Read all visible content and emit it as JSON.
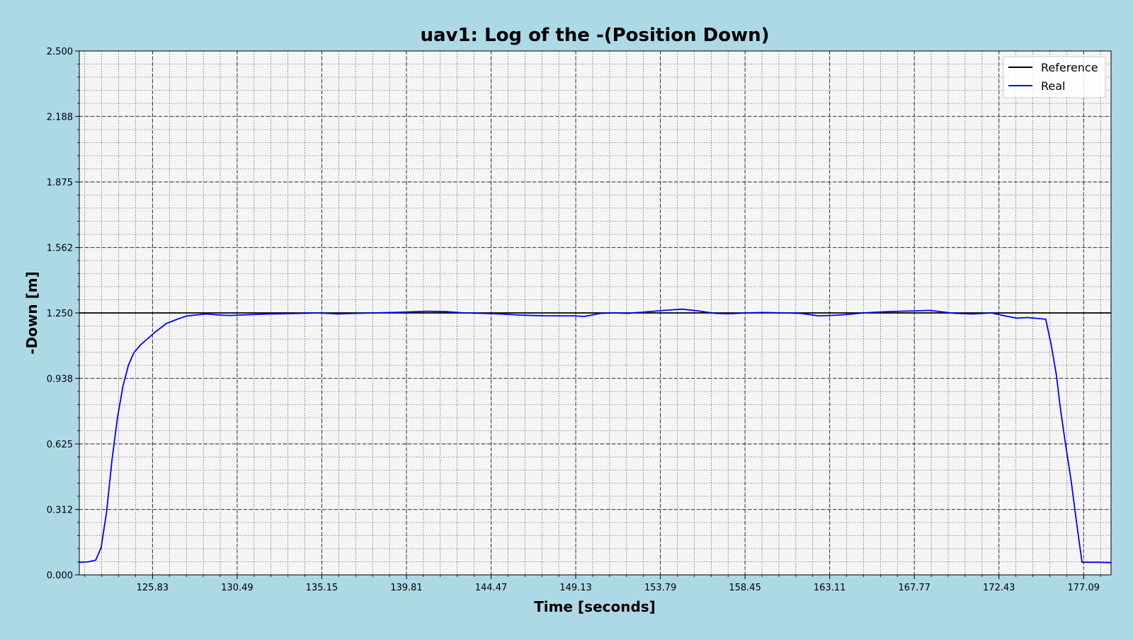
{
  "chart_data": {
    "type": "line",
    "title": "uav1: Log of the -(Position Down)",
    "xlabel": "Time [seconds]",
    "ylabel": "-Down [m]",
    "xlim": [
      121.8,
      178.6
    ],
    "ylim": [
      0.0,
      2.5
    ],
    "xticks": [
      "125.83",
      "130.49",
      "135.15",
      "139.81",
      "144.47",
      "149.13",
      "153.79",
      "158.45",
      "163.11",
      "167.77",
      "172.43",
      "177.09"
    ],
    "yticks": [
      "0.000",
      "0.312",
      "0.625",
      "0.938",
      "1.250",
      "1.562",
      "1.875",
      "2.188",
      "2.500"
    ],
    "grid": true,
    "legend_position": "top-right",
    "series": [
      {
        "name": "Reference",
        "color": "#000000",
        "x": [
          121.8,
          178.6
        ],
        "y": [
          1.25,
          1.25
        ]
      },
      {
        "name": "Real",
        "color": "#0000ff",
        "x": [
          121.8,
          122.3,
          122.7,
          123.0,
          123.3,
          123.6,
          123.9,
          124.2,
          124.5,
          124.8,
          125.2,
          125.6,
          126.0,
          126.6,
          127.2,
          127.7,
          128.2,
          128.8,
          129.5,
          130.1,
          130.7,
          131.3,
          132.2,
          133.0,
          134.0,
          135.0,
          136.0,
          137.0,
          138.0,
          139.0,
          140.0,
          141.0,
          142.0,
          143.0,
          144.0,
          145.0,
          146.0,
          147.0,
          148.0,
          149.0,
          149.6,
          150.5,
          151.3,
          152.0,
          153.0,
          154.0,
          155.0,
          156.0,
          156.8,
          157.5,
          158.5,
          159.5,
          160.5,
          161.5,
          162.5,
          163.2,
          164.0,
          165.0,
          166.0,
          167.0,
          168.0,
          168.6,
          169.3,
          170.0,
          171.0,
          172.0,
          172.8,
          173.4,
          174.0,
          175.0,
          175.3,
          175.6,
          175.8,
          176.1,
          176.4,
          176.7,
          177.0,
          177.3,
          177.5,
          178.0,
          178.6
        ],
        "y": [
          0.06,
          0.062,
          0.07,
          0.13,
          0.3,
          0.55,
          0.75,
          0.9,
          1.0,
          1.06,
          1.1,
          1.13,
          1.16,
          1.2,
          1.22,
          1.235,
          1.24,
          1.245,
          1.24,
          1.238,
          1.24,
          1.242,
          1.245,
          1.246,
          1.248,
          1.25,
          1.245,
          1.248,
          1.25,
          1.252,
          1.255,
          1.258,
          1.256,
          1.25,
          1.248,
          1.245,
          1.24,
          1.237,
          1.236,
          1.236,
          1.233,
          1.248,
          1.25,
          1.248,
          1.255,
          1.262,
          1.268,
          1.258,
          1.248,
          1.246,
          1.25,
          1.252,
          1.25,
          1.248,
          1.236,
          1.238,
          1.242,
          1.25,
          1.255,
          1.258,
          1.26,
          1.262,
          1.255,
          1.248,
          1.245,
          1.25,
          1.235,
          1.225,
          1.228,
          1.22,
          1.1,
          0.95,
          0.8,
          0.62,
          0.45,
          0.25,
          0.06,
          0.06,
          0.06,
          0.06,
          0.058
        ]
      }
    ]
  }
}
